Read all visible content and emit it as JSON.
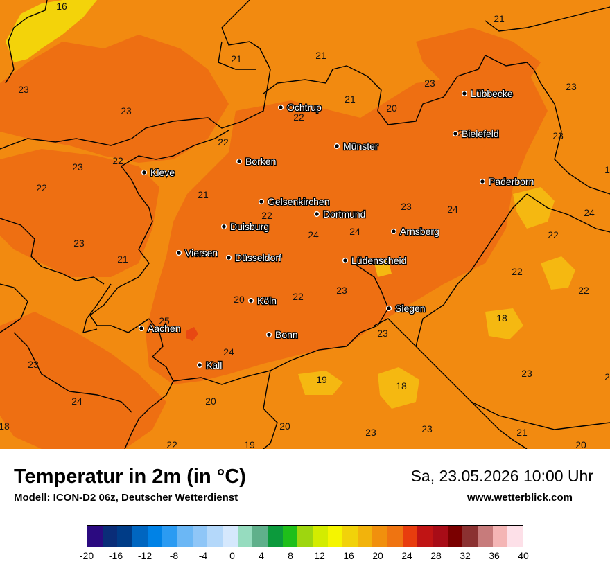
{
  "map": {
    "colors": {
      "base": "#f28a10",
      "warm": "#ee6f12",
      "hot": "#e84812",
      "cool": "#f5b811",
      "cooler": "#f3d30a",
      "border": "#000000"
    },
    "cities": [
      {
        "name": "Lübbecke"
      },
      {
        "name": "Ochtrup"
      },
      {
        "name": "Bielefeld"
      },
      {
        "name": "Münster"
      },
      {
        "name": "Borken"
      },
      {
        "name": "Kleve"
      },
      {
        "name": "Paderborn"
      },
      {
        "name": "Gelsenkirchen"
      },
      {
        "name": "Dortmund"
      },
      {
        "name": "Duisburg"
      },
      {
        "name": "Arnsberg"
      },
      {
        "name": "Viersen"
      },
      {
        "name": "Düsseldorf"
      },
      {
        "name": "Lüdenscheid"
      },
      {
        "name": "Köln"
      },
      {
        "name": "Siegen"
      },
      {
        "name": "Aachen"
      },
      {
        "name": "Bonn"
      },
      {
        "name": "Kall"
      }
    ],
    "temperature_labels": [
      "16",
      "21",
      "21",
      "21",
      "23",
      "23",
      "21",
      "22",
      "20",
      "23",
      "23",
      "22",
      "23",
      "23",
      "22",
      "21",
      "22",
      "23",
      "23",
      "24",
      "24",
      "22",
      "23",
      "24",
      "24",
      "22",
      "21",
      "20",
      "22",
      "23",
      "25",
      "22",
      "18",
      "23",
      "24",
      "22",
      "19",
      "18",
      "23",
      "23",
      "24",
      "20",
      "18",
      "22",
      "19",
      "20",
      "23",
      "23",
      "21",
      "20",
      "2",
      "1"
    ]
  },
  "footer": {
    "title": "Temperatur in 2m (in °C)",
    "model": "Modell: ICON-D2 06z, Deutscher Wetterdienst",
    "datetime": "Sa, 23.05.2026 10:00 Uhr",
    "website": "www.wetterblick.com"
  },
  "legend": {
    "colors": [
      "#2b0a80",
      "#0a2d78",
      "#003c87",
      "#0066c0",
      "#0082e6",
      "#2b9bf2",
      "#6bb7f5",
      "#8fc6f7",
      "#b4d8fa",
      "#d5e8fd",
      "#96dcbf",
      "#5fb08b",
      "#0c9a3c",
      "#1fbf1a",
      "#9ed60f",
      "#d3ec00",
      "#f5f500",
      "#f1d20a",
      "#f2b30c",
      "#f1900d",
      "#ef7411",
      "#e83d0e",
      "#c01414",
      "#a80c17",
      "#7a0000",
      "#8b3131",
      "#c77b7b",
      "#f4b5b5",
      "#fde0e8"
    ],
    "ticks": [
      "-20",
      "-16",
      "-12",
      "-8",
      "-4",
      "0",
      "4",
      "8",
      "12",
      "16",
      "20",
      "24",
      "28",
      "32",
      "36",
      "40"
    ]
  }
}
